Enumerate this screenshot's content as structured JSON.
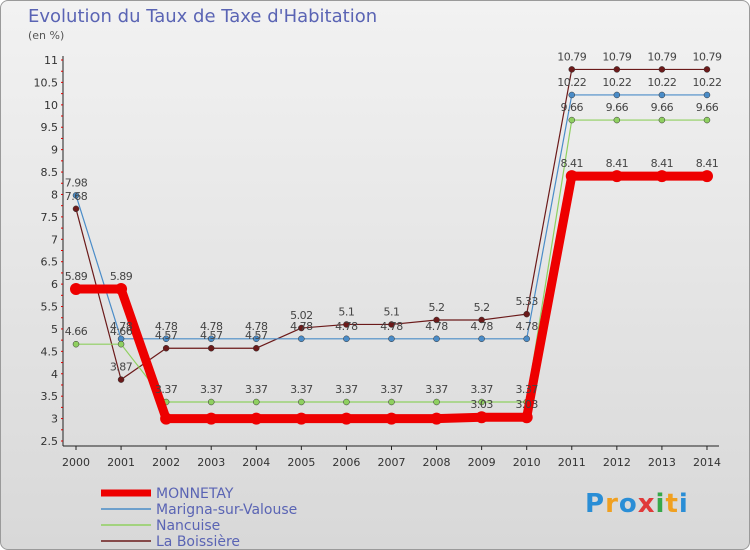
{
  "title": "Evolution du Taux de Taxe d'Habitation",
  "subtitle": "(en %)",
  "logo": {
    "letters": [
      "P",
      "r",
      "o",
      "x",
      "i",
      "t",
      "i"
    ],
    "colors": [
      "#2a8ed6",
      "#f0a020",
      "#2a8ed6",
      "#e03a3a",
      "#36a84a",
      "#f0a020",
      "#2a8ed6"
    ]
  },
  "chart_data": {
    "type": "line",
    "title": "Evolution du Taux de Taxe d'Habitation",
    "ylabel": "(en %)",
    "ylim": [
      2.5,
      11
    ],
    "yticks": [
      2.5,
      3,
      3.5,
      4,
      4.5,
      5,
      5.5,
      6,
      6.5,
      7,
      7.5,
      8,
      8.5,
      9,
      9.5,
      10,
      10.5,
      11
    ],
    "x": [
      "2000",
      "2001",
      "2002",
      "2003",
      "2004",
      "2005",
      "2006",
      "2007",
      "2008",
      "2009",
      "2010",
      "2011",
      "2012",
      "2013",
      "2014"
    ],
    "series": [
      {
        "name": "La Boissière",
        "color": "#6b1a1a",
        "values": [
          7.68,
          3.87,
          4.57,
          4.57,
          4.57,
          5.02,
          5.1,
          5.1,
          5.2,
          5.2,
          5.33,
          10.79,
          10.79,
          10.79,
          10.79
        ],
        "labels": [
          "7.68",
          "3.87",
          "4.57",
          "4.57",
          "4.57",
          "5.02",
          "5.1",
          "5.1",
          "5.2",
          "5.2",
          "5.33",
          "10.79",
          "10.79",
          "10.79",
          "10.79"
        ]
      },
      {
        "name": "Marigna-sur-Valouse",
        "color": "#4a8cc8",
        "values": [
          7.98,
          4.78,
          4.78,
          4.78,
          4.78,
          4.78,
          4.78,
          4.78,
          4.78,
          4.78,
          4.78,
          10.22,
          10.22,
          10.22,
          10.22
        ],
        "labels": [
          "7.98",
          "4.78",
          "4.78",
          "4.78",
          "4.78",
          "4.78",
          "4.78",
          "4.78",
          "4.78",
          "4.78",
          "4.78",
          "10.22",
          "10.22",
          "10.22",
          "10.22"
        ]
      },
      {
        "name": "Nancuise",
        "color": "#8fd060",
        "values": [
          4.66,
          4.66,
          3.37,
          3.37,
          3.37,
          3.37,
          3.37,
          3.37,
          3.37,
          3.37,
          3.37,
          9.66,
          9.66,
          9.66,
          9.66
        ],
        "labels": [
          "4.66",
          "4.66",
          "3.37",
          "3.37",
          "3.37",
          "3.37",
          "3.37",
          "3.37",
          "3.37",
          "3.37",
          "3.37",
          "9.66",
          "9.66",
          "9.66",
          "9.66"
        ]
      },
      {
        "name": "MONNETAY",
        "color": "#ee0000",
        "values": [
          5.89,
          5.89,
          3.0,
          3.0,
          3.0,
          3.0,
          3.0,
          3.0,
          3.0,
          3.03,
          3.03,
          8.41,
          8.41,
          8.41,
          8.41
        ],
        "labels": [
          "5.89",
          "5.89",
          "",
          "",
          "",
          "",
          "",
          "",
          "",
          "3.03",
          "3.03",
          "8.41",
          "8.41",
          "8.41",
          "8.41"
        ]
      }
    ],
    "legend": [
      {
        "name": "MONNETAY",
        "color": "#ee0000",
        "width": 7
      },
      {
        "name": "Marigna-sur-Valouse",
        "color": "#4a8cc8",
        "width": 1.5
      },
      {
        "name": "Nancuise",
        "color": "#8fd060",
        "width": 1.5
      },
      {
        "name": "La Boissière",
        "color": "#6b1a1a",
        "width": 1.5
      }
    ],
    "legend_position": "bottom-left",
    "grid": false
  }
}
